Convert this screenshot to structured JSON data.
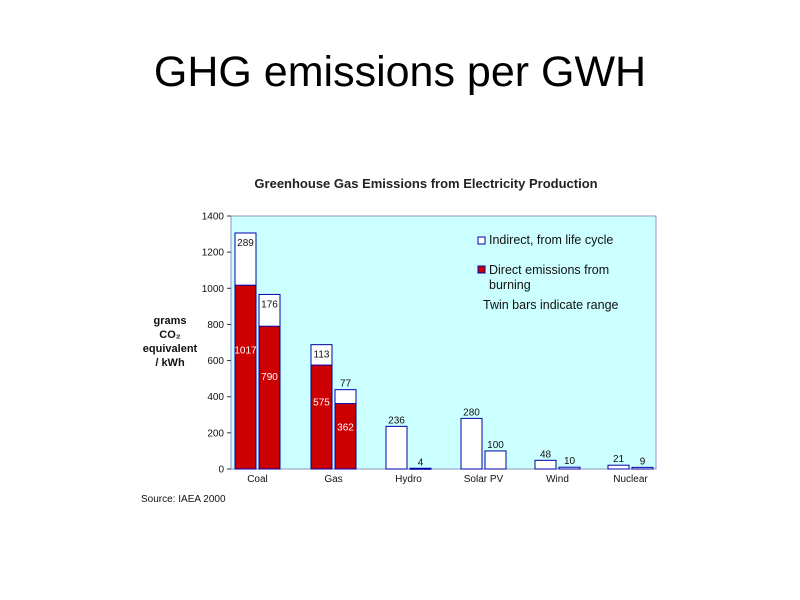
{
  "slide": {
    "title": "GHG emissions per GWH"
  },
  "chart_data": {
    "type": "bar",
    "title": "Greenhouse Gas Emissions from Electricity Production",
    "ylabel_lines": [
      "grams",
      "CO₂",
      "equivalent",
      "/ kWh"
    ],
    "ylim": [
      0,
      1400
    ],
    "yticks": [
      0,
      200,
      400,
      600,
      800,
      1000,
      1200,
      1400
    ],
    "categories": [
      "Coal",
      "Gas",
      "Hydro",
      "Solar PV",
      "Wind",
      "Nuclear"
    ],
    "series": [
      {
        "name": "Direct emissions from burning",
        "values": [
          [
            1017,
            790
          ],
          [
            575,
            362
          ],
          [
            0,
            0
          ],
          [
            0,
            0
          ],
          [
            0,
            0
          ],
          [
            0,
            0
          ]
        ]
      },
      {
        "name": "Indirect, from life cycle",
        "values": [
          [
            289,
            176
          ],
          [
            113,
            77
          ],
          [
            236,
            4
          ],
          [
            280,
            100
          ],
          [
            48,
            10
          ],
          [
            21,
            9
          ]
        ]
      }
    ],
    "legend": {
      "placement": "top-right",
      "indirect_label": "Indirect, from life cycle",
      "direct_label_lines": [
        "Direct emissions from",
        "burning"
      ],
      "note": "Twin bars indicate range"
    },
    "source": "Source: IAEA 2000",
    "colors": {
      "plot_bg": "#ccffff",
      "direct": "#cc0000",
      "indirect": "#ffffff",
      "outline": "#0000aa"
    }
  }
}
